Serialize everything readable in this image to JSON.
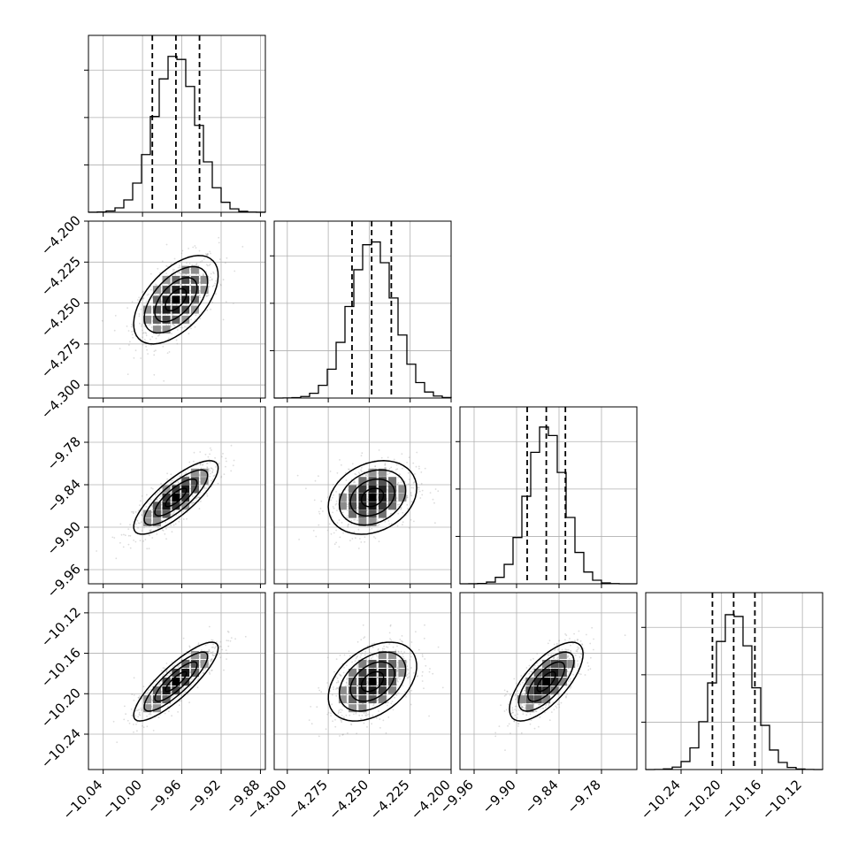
{
  "chart_data": {
    "type": "corner",
    "parameters": [
      {
        "ticks": [
          -10.04,
          -10.0,
          -9.96,
          -9.92,
          -9.88
        ],
        "tick_labels": [
          "−10.04",
          "−10.00",
          "−9.96",
          "−9.92",
          "−9.88"
        ],
        "range": [
          -10.055,
          -9.875
        ],
        "mean": -9.966,
        "sigma": 0.0215,
        "quantiles": [
          -9.99,
          -9.966,
          -9.942
        ]
      },
      {
        "ticks": [
          -4.3,
          -4.275,
          -4.25,
          -4.225,
          -4.2
        ],
        "tick_labels": [
          "−4.300",
          "−4.275",
          "−4.250",
          "−4.225",
          "−4.200"
        ],
        "range": [
          -4.308,
          -4.2
        ],
        "mean": -4.248,
        "sigma": 0.0135,
        "quantiles": [
          -4.2605,
          -4.2485,
          -4.2365
        ]
      },
      {
        "ticks": [
          -9.96,
          -9.9,
          -9.84,
          -9.78
        ],
        "tick_labels": [
          "−9.96",
          "−9.90",
          "−9.84",
          "−9.78"
        ],
        "range": [
          -9.98,
          -9.73
        ],
        "mean": -9.858,
        "sigma": 0.026,
        "quantiles": [
          -9.885,
          -9.858,
          -9.831
        ]
      },
      {
        "ticks": [
          -10.24,
          -10.2,
          -10.16,
          -10.12
        ],
        "tick_labels": [
          "−10.24",
          "−10.20",
          "−10.16",
          "−10.12"
        ],
        "range": [
          -10.275,
          -10.1
        ],
        "mean": -10.188,
        "sigma": 0.0195,
        "quantiles": [
          -10.209,
          -10.188,
          -10.167
        ]
      }
    ],
    "correlations": {
      "1-0": 0.55,
      "2-0": 0.8,
      "2-1": 0.25,
      "3-0": 0.85,
      "3-1": 0.4,
      "3-2": 0.7
    },
    "quantile_levels": [
      0.16,
      0.5,
      0.84
    ],
    "contour_levels": [
      0.5,
      1.0,
      1.5,
      2.0
    ],
    "grid": true,
    "colors": {
      "line": "#000000",
      "grid": "#b0b0b0",
      "scatter": "#9a9a9a"
    }
  }
}
